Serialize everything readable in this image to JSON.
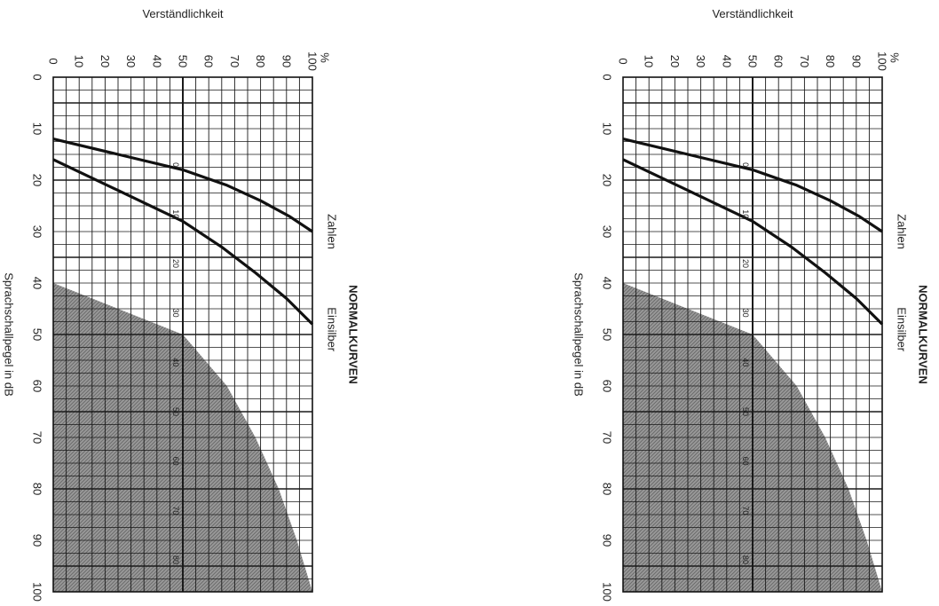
{
  "charts": [
    {
      "id": "left",
      "title": "NORMALKURVEN",
      "xlabel": "Sprachschallpegel in dB",
      "ylabel": "Verständlichkeit",
      "y_unit": "%",
      "x_ticks": [
        "0",
        "10",
        "20",
        "30",
        "40",
        "50",
        "60",
        "70",
        "80",
        "90",
        "100"
      ],
      "y_ticks": [
        "0",
        "10",
        "20",
        "30",
        "40",
        "50",
        "60",
        "70",
        "80",
        "90",
        "100"
      ],
      "inner_scale": [
        "0",
        "10",
        "20",
        "30",
        "40",
        "50",
        "60",
        "70",
        "80"
      ]
    },
    {
      "id": "right",
      "title": "NORMALKURVEN",
      "xlabel": "Sprachschallpegel in dB",
      "ylabel": "Verständlichkeit",
      "y_unit": "%",
      "x_ticks": [
        "0",
        "10",
        "20",
        "30",
        "40",
        "50",
        "60",
        "70",
        "80",
        "90",
        "100"
      ],
      "y_ticks": [
        "0",
        "10",
        "20",
        "30",
        "40",
        "50",
        "60",
        "70",
        "80",
        "90",
        "100"
      ],
      "inner_scale": [
        "0",
        "10",
        "20",
        "30",
        "40",
        "50",
        "60",
        "70",
        "80"
      ]
    }
  ],
  "chart_data": [
    {
      "type": "line",
      "title": "NORMALKURVEN",
      "xlabel": "Sprachschallpegel in dB",
      "ylabel": "Verständlichkeit (%)",
      "xlim": [
        0,
        100
      ],
      "ylim": [
        0,
        100
      ],
      "grid": true,
      "series": [
        {
          "name": "Zahlen",
          "x": [
            12,
            15,
            18,
            21,
            24,
            27,
            30
          ],
          "y": [
            0,
            25,
            50,
            67,
            80,
            91,
            100
          ]
        },
        {
          "name": "Einsilber",
          "x": [
            16,
            22,
            28,
            33,
            38,
            43,
            48
          ],
          "y": [
            0,
            25,
            50,
            65,
            78,
            90,
            100
          ]
        }
      ],
      "shaded_region": {
        "x": [
          40,
          50,
          60,
          70,
          80,
          90,
          100
        ],
        "y_upper": [
          0,
          50,
          67,
          78,
          87,
          94,
          100
        ]
      }
    },
    {
      "type": "line",
      "title": "NORMALKURVEN",
      "xlabel": "Sprachschallpegel in dB",
      "ylabel": "Verständlichkeit (%)",
      "xlim": [
        0,
        100
      ],
      "ylim": [
        0,
        100
      ],
      "grid": true,
      "series": [
        {
          "name": "Zahlen",
          "x": [
            12,
            15,
            18,
            21,
            24,
            27,
            30
          ],
          "y": [
            0,
            25,
            50,
            67,
            80,
            91,
            100
          ]
        },
        {
          "name": "Einsilber",
          "x": [
            16,
            22,
            28,
            33,
            38,
            43,
            48
          ],
          "y": [
            0,
            25,
            50,
            65,
            78,
            90,
            100
          ]
        }
      ],
      "shaded_region": {
        "x": [
          40,
          50,
          60,
          70,
          80,
          90,
          100
        ],
        "y_upper": [
          0,
          50,
          67,
          78,
          87,
          94,
          100
        ]
      }
    }
  ]
}
